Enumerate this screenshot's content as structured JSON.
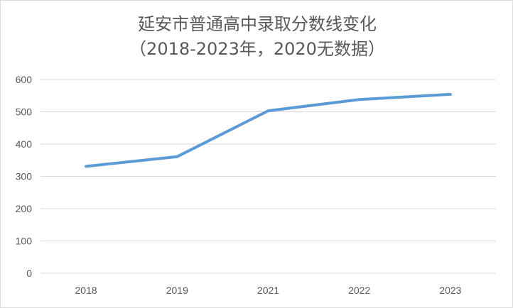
{
  "chart_data": {
    "type": "line",
    "title": "延安市普通高中录取分数线变化",
    "subtitle": "（2018-2023年，2020无数据）",
    "categories": [
      "2018",
      "2019",
      "2021",
      "2022",
      "2023"
    ],
    "series": [
      {
        "values": [
          331,
          361,
          503,
          538,
          554
        ],
        "color": "#5b9bd5"
      }
    ],
    "ylim": [
      0,
      600
    ],
    "yticks": [
      "0",
      "100",
      "200",
      "300",
      "400",
      "500",
      "600"
    ],
    "grid": true,
    "legend": "none"
  }
}
